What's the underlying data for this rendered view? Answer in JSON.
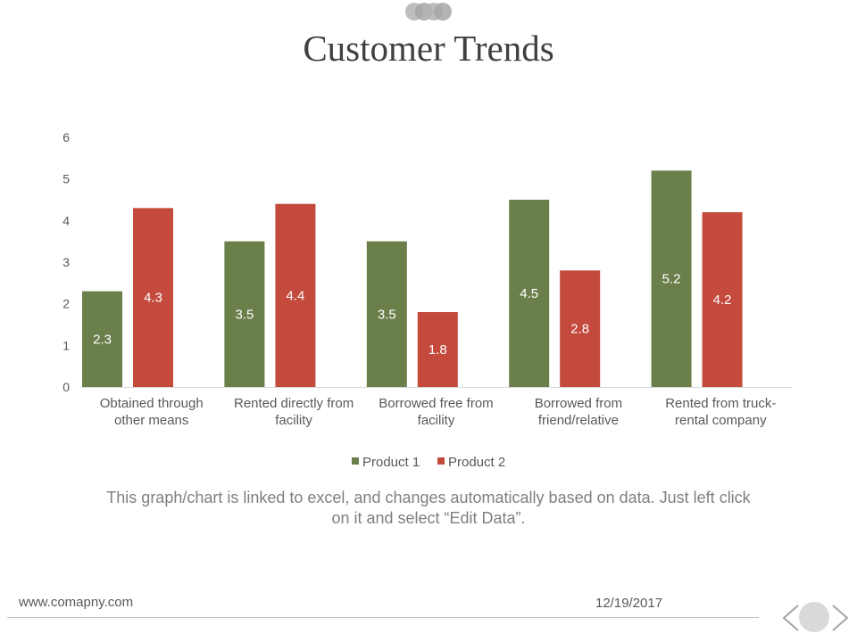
{
  "slide": {
    "title": "Customer Trends",
    "caption_line1": "This graph/chart is linked to excel, and changes automatically based on data. Just left click",
    "caption_line2": "on it and select “Edit Data”.",
    "footer_url": "www.comapny.com",
    "footer_date": "12/19/2017",
    "decoration_icon": "three-overlapping-circles-icon",
    "nav_icons": [
      "chevron-left-icon",
      "circle-icon",
      "chevron-right-icon"
    ]
  },
  "colors": {
    "product1": "#6b7f4b",
    "product2": "#c44a3d",
    "axis": "#d9d9d9",
    "tick_text": "#595959",
    "label_text": "#ffffff"
  },
  "chart_data": {
    "type": "bar",
    "title": "",
    "xlabel": "",
    "ylabel": "",
    "ylim": [
      0,
      6
    ],
    "yticks": [
      "0",
      "1",
      "2",
      "3",
      "4",
      "5",
      "6"
    ],
    "grid": false,
    "legend": "bottom",
    "categories": [
      [
        "Obtained through",
        "other means"
      ],
      [
        "Rented directly from",
        "facility"
      ],
      [
        "Borrowed free from",
        "facility"
      ],
      [
        "Borrowed  from",
        "friend/relative"
      ],
      [
        "Rented from truck-",
        "rental company"
      ]
    ],
    "series": [
      {
        "name": "Product 1",
        "values": [
          2.3,
          3.5,
          3.5,
          4.5,
          5.2
        ],
        "labels": [
          "2.3",
          "3.5",
          "3.5",
          "4.5",
          "5.2"
        ]
      },
      {
        "name": "Product  2",
        "values": [
          4.3,
          4.4,
          1.8,
          2.8,
          4.2
        ],
        "labels": [
          "4.3",
          "4.4",
          "1.8",
          "2.8",
          "4.2"
        ]
      }
    ]
  }
}
